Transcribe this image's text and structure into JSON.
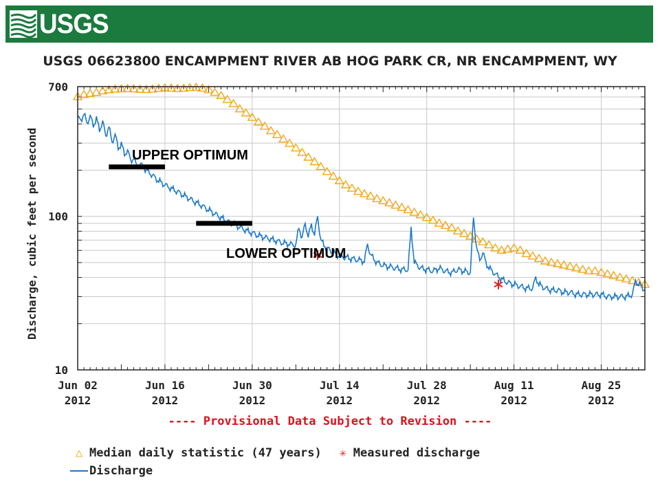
{
  "header": {
    "logo_text": "USGS",
    "logo_icon": "usgs-wave-mark-icon"
  },
  "chart_data": {
    "type": "line",
    "title": "USGS 06623800 ENCAMPMENT RIVER AB HOG PARK CR, NR ENCAMPMENT, WY",
    "ylabel": "Discharge, cubic feet per second",
    "xlabel": "",
    "yscale": "log",
    "ylim": [
      10,
      700
    ],
    "xlim": [
      0,
      91
    ],
    "grid": true,
    "y_ticks": [
      {
        "value": 10,
        "label": "10"
      },
      {
        "value": 100,
        "label": "100"
      },
      {
        "value": 700,
        "label": "700"
      }
    ],
    "x_ticks": [
      {
        "day": 0,
        "label": "Jun 02",
        "year": "2012"
      },
      {
        "day": 14,
        "label": "Jun 16",
        "year": "2012"
      },
      {
        "day": 28,
        "label": "Jun 30",
        "year": "2012"
      },
      {
        "day": 42,
        "label": "Jul 14",
        "year": "2012"
      },
      {
        "day": 56,
        "label": "Jul 28",
        "year": "2012"
      },
      {
        "day": 70,
        "label": "Aug 11",
        "year": "2012"
      },
      {
        "day": 84,
        "label": "Aug 25",
        "year": "2012"
      }
    ],
    "series": [
      {
        "name": "Median daily statistic (47 years)",
        "style": "triangle-markers",
        "color": "#f0a818",
        "points": [
          [
            0,
            600
          ],
          [
            1,
            620
          ],
          [
            2,
            630
          ],
          [
            3,
            640
          ],
          [
            4,
            655
          ],
          [
            5,
            665
          ],
          [
            6,
            672
          ],
          [
            7,
            675
          ],
          [
            8,
            678
          ],
          [
            9,
            675
          ],
          [
            10,
            670
          ],
          [
            11,
            668
          ],
          [
            12,
            672
          ],
          [
            13,
            680
          ],
          [
            14,
            685
          ],
          [
            15,
            682
          ],
          [
            16,
            678
          ],
          [
            17,
            682
          ],
          [
            18,
            688
          ],
          [
            19,
            690
          ],
          [
            20,
            682
          ],
          [
            21,
            665
          ],
          [
            22,
            640
          ],
          [
            23,
            610
          ],
          [
            24,
            575
          ],
          [
            25,
            540
          ],
          [
            26,
            500
          ],
          [
            27,
            470
          ],
          [
            28,
            440
          ],
          [
            29,
            410
          ],
          [
            30,
            385
          ],
          [
            31,
            360
          ],
          [
            32,
            340
          ],
          [
            33,
            318
          ],
          [
            34,
            298
          ],
          [
            35,
            278
          ],
          [
            36,
            260
          ],
          [
            37,
            242
          ],
          [
            38,
            226
          ],
          [
            39,
            210
          ],
          [
            40,
            195
          ],
          [
            41,
            182
          ],
          [
            42,
            170
          ],
          [
            43,
            160
          ],
          [
            44,
            152
          ],
          [
            45,
            145
          ],
          [
            46,
            140
          ],
          [
            47,
            135
          ],
          [
            48,
            130
          ],
          [
            49,
            126
          ],
          [
            50,
            122
          ],
          [
            51,
            118
          ],
          [
            52,
            114
          ],
          [
            53,
            110
          ],
          [
            54,
            106
          ],
          [
            55,
            102
          ],
          [
            56,
            98
          ],
          [
            57,
            94
          ],
          [
            58,
            90
          ],
          [
            59,
            87
          ],
          [
            60,
            84
          ],
          [
            61,
            80
          ],
          [
            62,
            77
          ],
          [
            63,
            74
          ],
          [
            64,
            71
          ],
          [
            65,
            68
          ],
          [
            66,
            65
          ],
          [
            67,
            62
          ],
          [
            68,
            60
          ],
          [
            69,
            61
          ],
          [
            70,
            62
          ],
          [
            71,
            60
          ],
          [
            72,
            57
          ],
          [
            73,
            55
          ],
          [
            74,
            53
          ],
          [
            75,
            51
          ],
          [
            76,
            50
          ],
          [
            77,
            49
          ],
          [
            78,
            48
          ],
          [
            79,
            47
          ],
          [
            80,
            46
          ],
          [
            81,
            45
          ],
          [
            82,
            44
          ],
          [
            83,
            44
          ],
          [
            84,
            43
          ],
          [
            85,
            42
          ],
          [
            86,
            41
          ],
          [
            87,
            40
          ],
          [
            88,
            39
          ],
          [
            89,
            38
          ],
          [
            90,
            37
          ],
          [
            91,
            36
          ]
        ]
      },
      {
        "name": "Discharge",
        "style": "line",
        "color": "#1a78c8",
        "points": [
          [
            0,
            440
          ],
          [
            0.5,
            420
          ],
          [
            1,
            470
          ],
          [
            1.5,
            400
          ],
          [
            2,
            455
          ],
          [
            2.5,
            385
          ],
          [
            3,
            440
          ],
          [
            3.5,
            360
          ],
          [
            4,
            420
          ],
          [
            4.5,
            330
          ],
          [
            5,
            390
          ],
          [
            5.5,
            300
          ],
          [
            6,
            345
          ],
          [
            6.5,
            275
          ],
          [
            7,
            300
          ],
          [
            7.5,
            252
          ],
          [
            8,
            270
          ],
          [
            8.5,
            230
          ],
          [
            9,
            240
          ],
          [
            9.5,
            212
          ],
          [
            10,
            220
          ],
          [
            11,
            200
          ],
          [
            12,
            185
          ],
          [
            13,
            170
          ],
          [
            14,
            160
          ],
          [
            15,
            152
          ],
          [
            16,
            145
          ],
          [
            17,
            137
          ],
          [
            18,
            130
          ],
          [
            19,
            123
          ],
          [
            20,
            117
          ],
          [
            21,
            110
          ],
          [
            22,
            104
          ],
          [
            23,
            98
          ],
          [
            24,
            93
          ],
          [
            25,
            89
          ],
          [
            26,
            85
          ],
          [
            27,
            81
          ],
          [
            28,
            78
          ],
          [
            29,
            75
          ],
          [
            30,
            73
          ],
          [
            31,
            71
          ],
          [
            32,
            69
          ],
          [
            33,
            67
          ],
          [
            34,
            66
          ],
          [
            35,
            65
          ],
          [
            35.5,
            85
          ],
          [
            36,
            72
          ],
          [
            36.5,
            90
          ],
          [
            37,
            74
          ],
          [
            37.5,
            88
          ],
          [
            38,
            76
          ],
          [
            38.5,
            100
          ],
          [
            39,
            70
          ],
          [
            39.5,
            65
          ],
          [
            40,
            62
          ],
          [
            41,
            58
          ],
          [
            42,
            55
          ],
          [
            43,
            54
          ],
          [
            44,
            53
          ],
          [
            45,
            52
          ],
          [
            46,
            51
          ],
          [
            46.5,
            66
          ],
          [
            47,
            56
          ],
          [
            48,
            50
          ],
          [
            49,
            48
          ],
          [
            50,
            47
          ],
          [
            51,
            46
          ],
          [
            52,
            45
          ],
          [
            53,
            45
          ],
          [
            53.5,
            84
          ],
          [
            54,
            50
          ],
          [
            55,
            46
          ],
          [
            56,
            45
          ],
          [
            57,
            44
          ],
          [
            58,
            46
          ],
          [
            59,
            44
          ],
          [
            60,
            43
          ],
          [
            61,
            45
          ],
          [
            62,
            44
          ],
          [
            63,
            43
          ],
          [
            63.5,
            100
          ],
          [
            64,
            62
          ],
          [
            64.5,
            52
          ],
          [
            65,
            58
          ],
          [
            65.5,
            50
          ],
          [
            66,
            46
          ],
          [
            67,
            42
          ],
          [
            68,
            39
          ],
          [
            69,
            37
          ],
          [
            70,
            36
          ],
          [
            71,
            35
          ],
          [
            72,
            34
          ],
          [
            73,
            34
          ],
          [
            73.5,
            40
          ],
          [
            74,
            36
          ],
          [
            75,
            34
          ],
          [
            76,
            33
          ],
          [
            77,
            33
          ],
          [
            78,
            32
          ],
          [
            79,
            32
          ],
          [
            80,
            31
          ],
          [
            81,
            31
          ],
          [
            82,
            31
          ],
          [
            83,
            31
          ],
          [
            84,
            31
          ],
          [
            85,
            30
          ],
          [
            86,
            30
          ],
          [
            87,
            30
          ],
          [
            88,
            30
          ],
          [
            89,
            31
          ],
          [
            89.5,
            38
          ],
          [
            90,
            36
          ],
          [
            90.5,
            35
          ],
          [
            91,
            33
          ]
        ]
      },
      {
        "name": "Measured discharge",
        "style": "asterisk-markers",
        "color": "#e02020",
        "points": [
          [
            38.5,
            56
          ],
          [
            67.5,
            36
          ]
        ]
      }
    ],
    "annotations": [
      {
        "text": "UPPER OPTIMUM",
        "band_start_day": 5,
        "band_end_day": 14,
        "value": 210
      },
      {
        "text": "LOWER OPTIMUM",
        "band_start_day": 19,
        "band_end_day": 28,
        "value": 90
      }
    ],
    "legend": [
      {
        "symbol": "△",
        "label": "Median daily statistic (47 years)"
      },
      {
        "symbol": "✳",
        "label": "Measured discharge"
      },
      {
        "symbol": "line",
        "label": "Discharge"
      }
    ],
    "footnote": "---- Provisional Data Subject to Revision ----"
  }
}
